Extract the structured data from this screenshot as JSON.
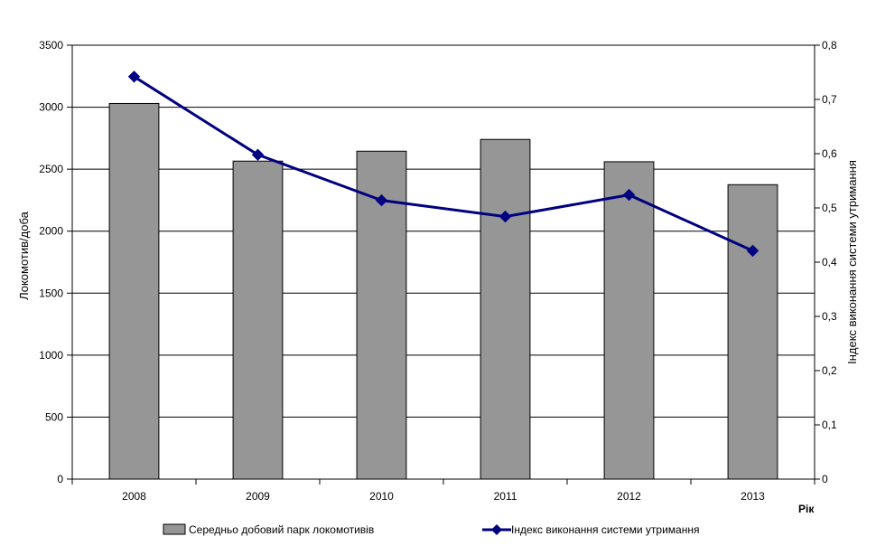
{
  "chart_data": {
    "type": "bar",
    "categories": [
      "2008",
      "2009",
      "2010",
      "2011",
      "2012",
      "2013"
    ],
    "xlabel": "Рік",
    "ylabel": "Локомотив/доба",
    "y2label": "Індекс виконання системи утримання",
    "ylim": [
      0,
      3500
    ],
    "y2lim": [
      0,
      0.8
    ],
    "yticks": [
      "0",
      "500",
      "1000",
      "1500",
      "2000",
      "2500",
      "3000",
      "3500"
    ],
    "y2ticks": [
      "0",
      "0,1",
      "0,2",
      "0,3",
      "0,4",
      "0,5",
      "0,6",
      "0,7",
      "0,8"
    ],
    "grid": true,
    "legend_position": "bottom",
    "series": [
      {
        "name": "Середньо добовий парк локомотивів",
        "type": "bar",
        "axis": "left",
        "color": "#969696",
        "values": [
          3030,
          2565,
          2645,
          2740,
          2560,
          2375
        ]
      },
      {
        "name": "Індекс виконання системи утримання",
        "type": "line",
        "axis": "right",
        "color": "#000080",
        "marker": "diamond",
        "values": [
          0.742,
          0.598,
          0.514,
          0.484,
          0.524,
          0.421
        ]
      }
    ]
  }
}
